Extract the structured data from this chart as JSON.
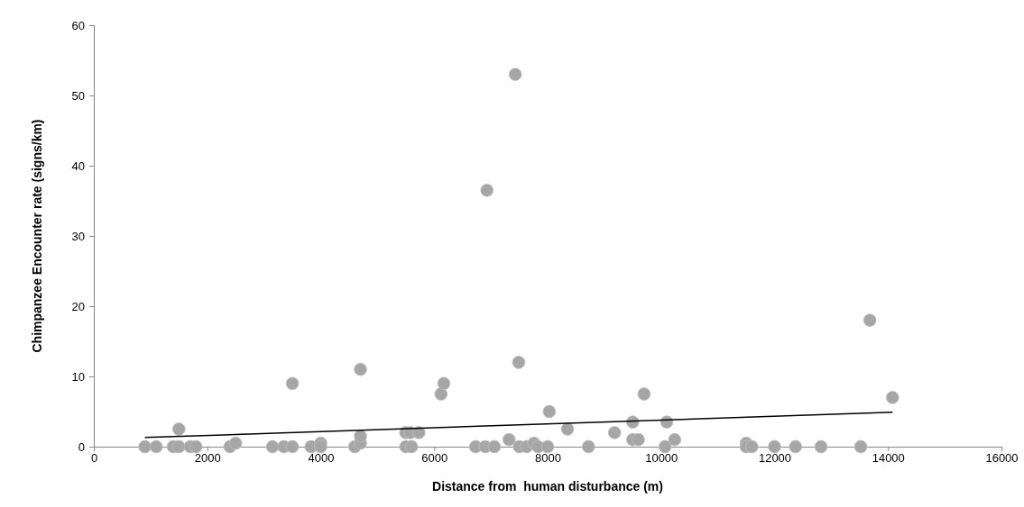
{
  "chart_data": {
    "type": "scatter",
    "xlabel": "Distance from  human disturbance (m)",
    "ylabel": "Chimpanzee Encounter rate (signs/km)",
    "xlim": [
      0,
      16000
    ],
    "xticks": [
      0,
      2000,
      4000,
      6000,
      8000,
      10000,
      12000,
      14000,
      16000
    ],
    "ylim": [
      0,
      60
    ],
    "yticks": [
      0,
      10,
      20,
      30,
      40,
      50,
      60
    ],
    "grid": false,
    "marker": "circle",
    "series": [
      {
        "color": "#a6a6a6",
        "x": [
          900,
          1100,
          1400,
          1500,
          1500,
          1700,
          1800,
          2400,
          2500,
          3150,
          3350,
          3500,
          3500,
          3830,
          4000,
          4000,
          4600,
          4700,
          4700,
          4700,
          5500,
          5500,
          5580,
          5600,
          5730,
          6120,
          6170,
          6730,
          6900,
          6930,
          7060,
          7320,
          7430,
          7490,
          7500,
          7630,
          7760,
          7830,
          8000,
          8030,
          8350,
          8720,
          9180,
          9500,
          9500,
          9600,
          9700,
          10070,
          10100,
          10240,
          11500,
          11500,
          11600,
          12000,
          12370,
          12820,
          13520,
          13680,
          14080
        ],
        "values": [
          0,
          0,
          0,
          2.5,
          0,
          0,
          0,
          0,
          0.5,
          0,
          0,
          9,
          0,
          0,
          0.5,
          0,
          0,
          0.5,
          1.5,
          11,
          2,
          0,
          2,
          0,
          2,
          7.5,
          9,
          0,
          0,
          36.5,
          0,
          1,
          53,
          12,
          0,
          0,
          0.5,
          0,
          0,
          5,
          2.5,
          0,
          2,
          3.5,
          1,
          1,
          7.5,
          0,
          3.5,
          1,
          0.5,
          0,
          0,
          0,
          0,
          0,
          0,
          18,
          7
        ]
      },
      {
        "type": "line",
        "color": "#000000",
        "marker": "none",
        "line_style": "solid",
        "x": [
          900,
          14080
        ],
        "values": [
          1.3,
          4.9
        ]
      }
    ]
  }
}
